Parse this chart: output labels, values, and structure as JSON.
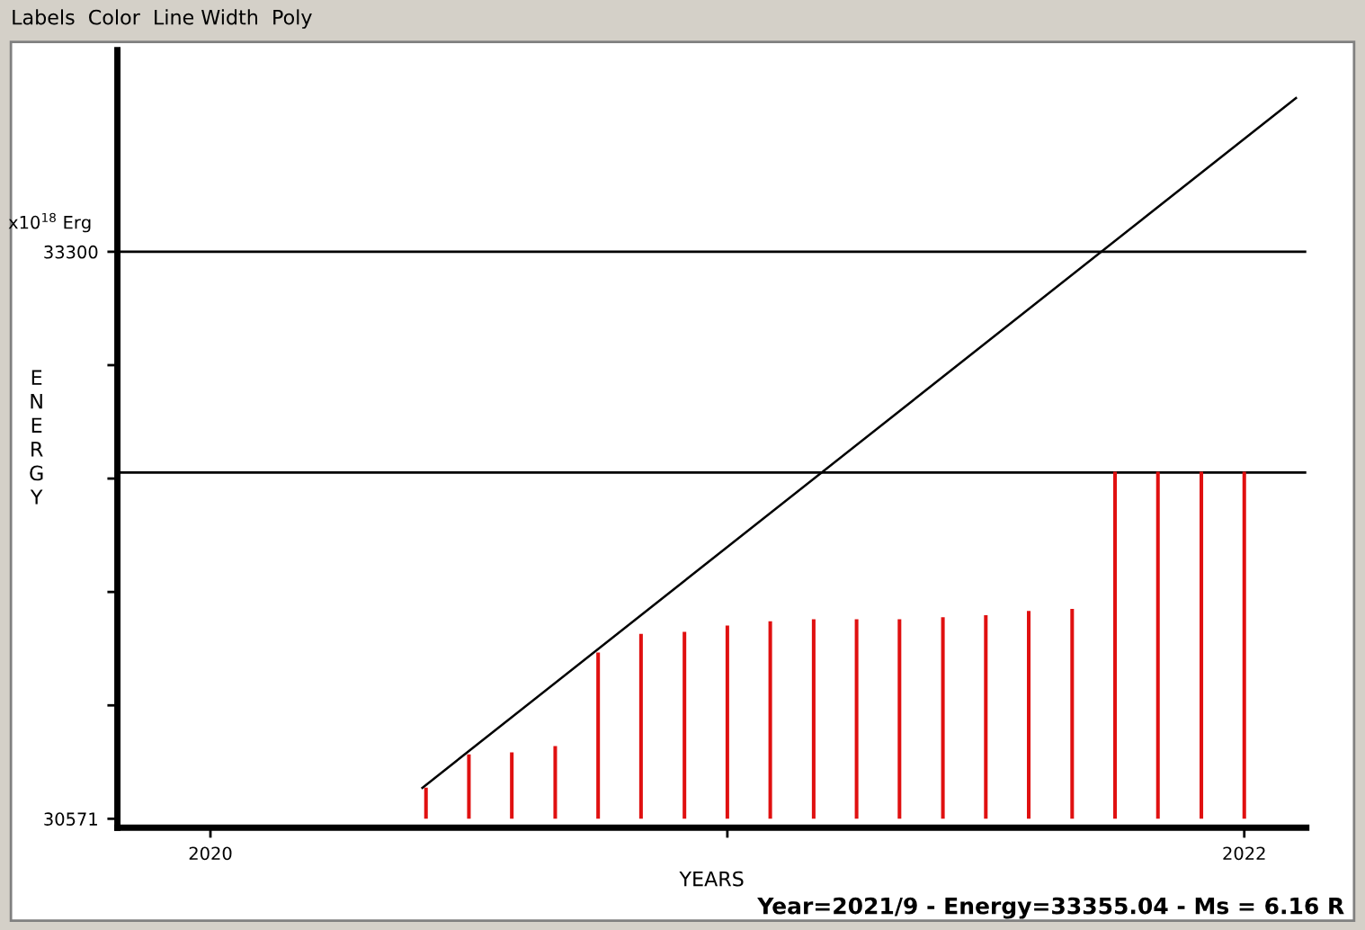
{
  "chart_data": {
    "type": "bar",
    "xlabel": "YEARS",
    "ylabel": "ENERGY",
    "x": [
      2020.417,
      2020.5,
      2020.583,
      2020.667,
      2020.75,
      2020.833,
      2020.917,
      2021.0,
      2021.083,
      2021.167,
      2021.25,
      2021.333,
      2021.417,
      2021.5,
      2021.583,
      2021.667,
      2021.75,
      2021.833,
      2021.917,
      2022.0
    ],
    "series": [
      {
        "color": "#e01010",
        "base": [
          30571,
          30571,
          30571,
          30571,
          30571,
          30571,
          30571,
          30571,
          30571,
          30571,
          30571,
          30571,
          30571,
          30571,
          30571,
          30571,
          30571,
          30571,
          30571,
          30571
        ],
        "values": [
          150,
          310,
          320,
          350,
          800,
          890,
          900,
          930,
          950,
          960,
          960,
          960,
          970,
          980,
          1000,
          1010,
          1670,
          1670,
          1670,
          1670
        ]
      },
      {
        "type": "line",
        "color": "#000000",
        "x": [
          2020.41,
          2022.1
        ],
        "values": [
          30720,
          34040
        ]
      }
    ],
    "xlim": [
      2019.82,
      2022.12
    ],
    "ylim": [
      30528,
      34270
    ],
    "xticks": [
      2020,
      {
        "value": 2021,
        "label": null
      },
      2022
    ],
    "yticks": [
      30571,
      {
        "value": 31116.8,
        "label": null
      },
      {
        "value": 31662.6,
        "label": null
      },
      {
        "value": 32208.4,
        "label": null
      },
      {
        "value": 32754.2,
        "label": null
      },
      33300
    ],
    "ref_lines": [
      {
        "axis": "y",
        "value": 33300,
        "color": "#000000"
      },
      {
        "axis": "y",
        "value": 32237,
        "color": "#000000"
      }
    ],
    "annotations": [
      "Labels  Color  Line Width  Poly",
      "x10$^{18}$ Erg",
      "Year=2021/9 - Energy=33355.04 - Ms = 6.16 R"
    ],
    "grid": false,
    "legend": false
  }
}
